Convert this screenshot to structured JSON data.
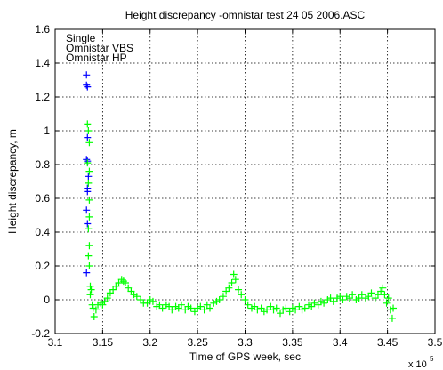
{
  "chart_data": {
    "type": "scatter",
    "title": "Height discrepancy -omnistar test 24 05 2006.ASC",
    "xlabel": "Time of GPS week, sec",
    "ylabel": "Height discrepancy, m",
    "x_multiplier_label": "x 10",
    "x_multiplier_exponent": "5",
    "xlim": [
      3.1,
      3.5
    ],
    "ylim": [
      -0.2,
      1.6
    ],
    "xticks": [
      "3.1",
      "3.15",
      "3.2",
      "3.25",
      "3.3",
      "3.35",
      "3.4",
      "3.45",
      "3.5"
    ],
    "yticks": [
      "-0.2",
      "0",
      "0.2",
      "0.4",
      "0.6",
      "0.8",
      "1",
      "1.2",
      "1.4",
      "1.6"
    ],
    "grid": true,
    "legend_position": "top-left",
    "marker": "+",
    "series": [
      {
        "name": "Single",
        "color": "#ff0000",
        "points": []
      },
      {
        "name": "Omnistar VBS",
        "color": "#0000ff",
        "points": [
          [
            3.133,
            1.33
          ],
          [
            3.133,
            1.27
          ],
          [
            3.134,
            1.26
          ],
          [
            3.134,
            0.96
          ],
          [
            3.133,
            0.83
          ],
          [
            3.134,
            0.82
          ],
          [
            3.135,
            0.73
          ],
          [
            3.134,
            0.66
          ],
          [
            3.134,
            0.64
          ],
          [
            3.133,
            0.53
          ],
          [
            3.134,
            0.45
          ],
          [
            3.133,
            0.16
          ]
        ]
      },
      {
        "name": "Omnistar HP",
        "color": "#00ff00",
        "points": [
          [
            3.134,
            1.04
          ],
          [
            3.135,
            1.0
          ],
          [
            3.136,
            0.93
          ],
          [
            3.134,
            0.81
          ],
          [
            3.136,
            0.76
          ],
          [
            3.135,
            0.69
          ],
          [
            3.136,
            0.59
          ],
          [
            3.136,
            0.49
          ],
          [
            3.135,
            0.42
          ],
          [
            3.136,
            0.32
          ],
          [
            3.135,
            0.26
          ],
          [
            3.136,
            0.2
          ],
          [
            3.137,
            0.08
          ],
          [
            3.137,
            0.03
          ],
          [
            3.138,
            0.06
          ],
          [
            3.139,
            -0.03
          ],
          [
            3.14,
            -0.05
          ],
          [
            3.141,
            -0.1
          ],
          [
            3.143,
            -0.06
          ],
          [
            3.145,
            -0.03
          ],
          [
            3.148,
            -0.02
          ],
          [
            3.15,
            -0.03
          ],
          [
            3.152,
            -0.01
          ],
          [
            3.155,
            0.01
          ],
          [
            3.158,
            0.04
          ],
          [
            3.161,
            0.06
          ],
          [
            3.164,
            0.08
          ],
          [
            3.167,
            0.1
          ],
          [
            3.17,
            0.12
          ],
          [
            3.172,
            0.11
          ],
          [
            3.174,
            0.1
          ],
          [
            3.177,
            0.07
          ],
          [
            3.18,
            0.05
          ],
          [
            3.183,
            0.03
          ],
          [
            3.186,
            0.02
          ],
          [
            3.19,
            0.0
          ],
          [
            3.193,
            -0.02
          ],
          [
            3.197,
            -0.02
          ],
          [
            3.2,
            0.0
          ],
          [
            3.203,
            -0.01
          ],
          [
            3.207,
            -0.04
          ],
          [
            3.21,
            -0.03
          ],
          [
            3.213,
            -0.05
          ],
          [
            3.217,
            -0.03
          ],
          [
            3.22,
            -0.04
          ],
          [
            3.223,
            -0.06
          ],
          [
            3.227,
            -0.04
          ],
          [
            3.23,
            -0.05
          ],
          [
            3.233,
            -0.03
          ],
          [
            3.237,
            -0.06
          ],
          [
            3.24,
            -0.04
          ],
          [
            3.243,
            -0.05
          ],
          [
            3.247,
            -0.07
          ],
          [
            3.25,
            -0.05
          ],
          [
            3.253,
            -0.04
          ],
          [
            3.257,
            -0.06
          ],
          [
            3.26,
            -0.03
          ],
          [
            3.263,
            -0.05
          ],
          [
            3.267,
            -0.02
          ],
          [
            3.27,
            -0.01
          ],
          [
            3.273,
            0.0
          ],
          [
            3.277,
            0.02
          ],
          [
            3.28,
            0.05
          ],
          [
            3.283,
            0.07
          ],
          [
            3.286,
            0.1
          ],
          [
            3.288,
            0.15
          ],
          [
            3.29,
            0.12
          ],
          [
            3.293,
            0.06
          ],
          [
            3.296,
            0.03
          ],
          [
            3.3,
            0.0
          ],
          [
            3.303,
            -0.03
          ],
          [
            3.307,
            -0.05
          ],
          [
            3.31,
            -0.04
          ],
          [
            3.313,
            -0.06
          ],
          [
            3.317,
            -0.05
          ],
          [
            3.32,
            -0.07
          ],
          [
            3.323,
            -0.06
          ],
          [
            3.327,
            -0.04
          ],
          [
            3.33,
            -0.06
          ],
          [
            3.333,
            -0.05
          ],
          [
            3.337,
            -0.08
          ],
          [
            3.34,
            -0.06
          ],
          [
            3.343,
            -0.05
          ],
          [
            3.347,
            -0.07
          ],
          [
            3.35,
            -0.05
          ],
          [
            3.353,
            -0.06
          ],
          [
            3.357,
            -0.04
          ],
          [
            3.36,
            -0.06
          ],
          [
            3.363,
            -0.05
          ],
          [
            3.367,
            -0.03
          ],
          [
            3.37,
            -0.04
          ],
          [
            3.373,
            -0.02
          ],
          [
            3.377,
            -0.03
          ],
          [
            3.38,
            -0.01
          ],
          [
            3.383,
            -0.02
          ],
          [
            3.387,
            0.0
          ],
          [
            3.39,
            0.01
          ],
          [
            3.393,
            -0.01
          ],
          [
            3.397,
            0.01
          ],
          [
            3.4,
            0.02
          ],
          [
            3.403,
            0.0
          ],
          [
            3.407,
            0.02
          ],
          [
            3.41,
            0.01
          ],
          [
            3.413,
            0.03
          ],
          [
            3.417,
            0.0
          ],
          [
            3.42,
            0.01
          ],
          [
            3.423,
            0.03
          ],
          [
            3.427,
            0.01
          ],
          [
            3.43,
            0.02
          ],
          [
            3.433,
            0.04
          ],
          [
            3.437,
            0.01
          ],
          [
            3.44,
            0.03
          ],
          [
            3.443,
            0.05
          ],
          [
            3.445,
            0.07
          ],
          [
            3.447,
            0.03
          ],
          [
            3.449,
            -0.02
          ],
          [
            3.451,
            0.01
          ],
          [
            3.453,
            -0.06
          ],
          [
            3.455,
            -0.11
          ],
          [
            3.456,
            -0.05
          ]
        ]
      }
    ]
  }
}
